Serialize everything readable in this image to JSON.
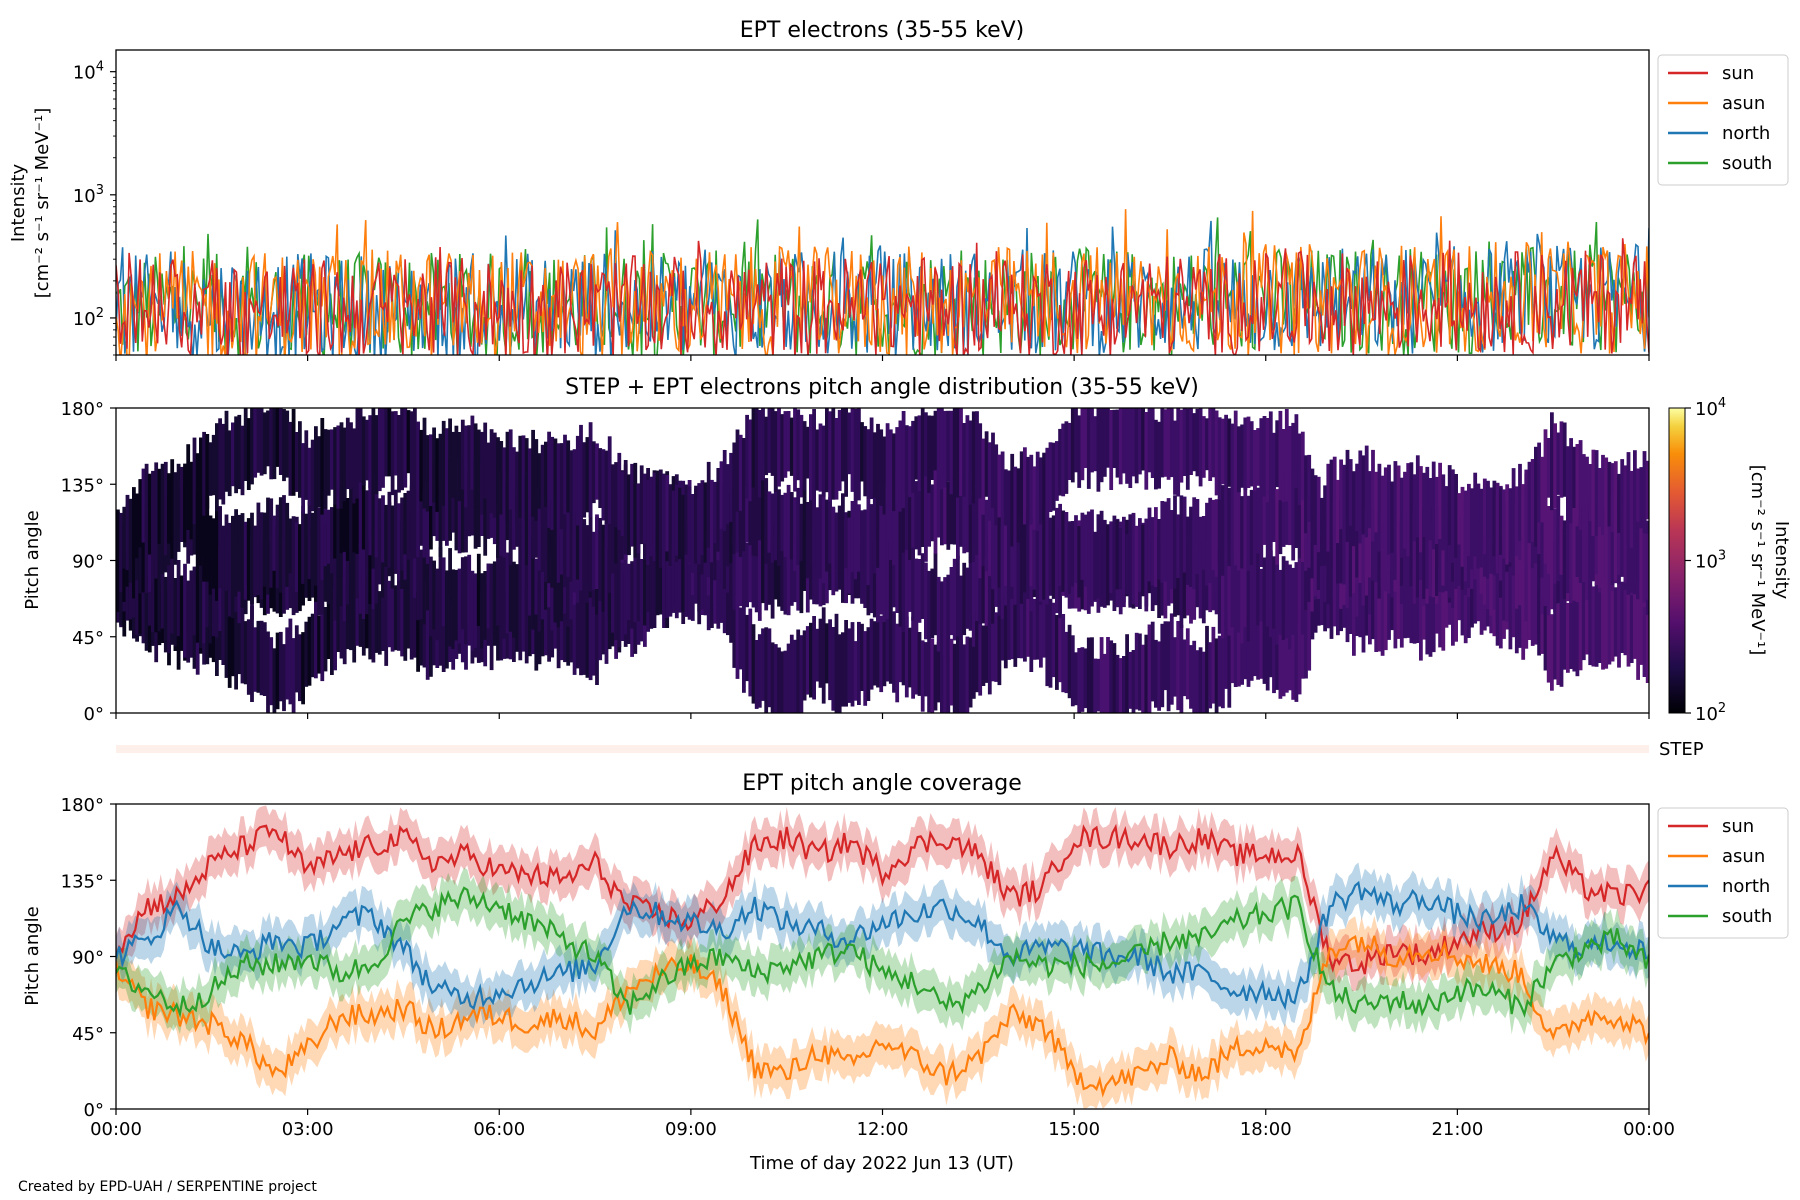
{
  "figure": {
    "credit": "Created by EPD-UAH / SERPENTINE project",
    "xlabel": "Time of day 2022 Jun 13 (UT)",
    "xticks": [
      "00:00",
      "03:00",
      "06:00",
      "09:00",
      "12:00",
      "15:00",
      "18:00",
      "21:00",
      "00:00"
    ],
    "colors": {
      "sun": "#d62728",
      "asun": "#ff7f0e",
      "north": "#1f77b4",
      "south": "#2ca02c"
    }
  },
  "chart_data": [
    {
      "type": "line",
      "title": "EPT electrons (35-55 keV)",
      "ylabel_line1": "Intensity",
      "ylabel_line2": "[cm⁻² s⁻¹ sr⁻¹ MeV⁻¹]",
      "yscale": "log",
      "ylim": [
        50,
        15000
      ],
      "yticks": [
        {
          "base": "10",
          "exp": "2"
        },
        {
          "base": "10",
          "exp": "3"
        },
        {
          "base": "10",
          "exp": "4"
        }
      ],
      "x_range_hours": [
        0,
        24
      ],
      "legend": {
        "placement": "outside-right",
        "entries": [
          "sun",
          "asun",
          "north",
          "south"
        ]
      },
      "series": [
        {
          "name": "sun",
          "typical_range": [
            60,
            300
          ],
          "peak": 400
        },
        {
          "name": "asun",
          "typical_range": [
            60,
            350
          ],
          "peak": 700
        },
        {
          "name": "north",
          "typical_range": [
            60,
            330
          ],
          "peak": 580
        },
        {
          "name": "south",
          "typical_range": [
            60,
            330
          ],
          "peak": 600
        }
      ]
    },
    {
      "type": "heatmap",
      "title": "STEP + EPT electrons pitch angle distribution (35-55 keV)",
      "ylabel": "Pitch angle",
      "ylim": [
        0,
        180
      ],
      "yticks": [
        "0°",
        "45°",
        "90°",
        "135°",
        "180°"
      ],
      "colorbar": {
        "label_line1": "Intensity",
        "label_line2": "[cm⁻² s⁻¹ sr⁻¹ MeV⁻¹]",
        "scale": "log",
        "range": [
          100,
          10000
        ],
        "ticks": [
          {
            "base": "10",
            "exp": "2"
          },
          {
            "base": "10",
            "exp": "3"
          },
          {
            "base": "10",
            "exp": "4"
          }
        ],
        "colormap": "inferno"
      },
      "step_label": "STEP"
    },
    {
      "type": "line",
      "title": "EPT pitch angle coverage",
      "ylabel": "Pitch angle",
      "ylim": [
        0,
        180
      ],
      "yticks": [
        "0°",
        "45°",
        "90°",
        "135°",
        "180°"
      ],
      "legend": {
        "placement": "outside-right",
        "entries": [
          "sun",
          "asun",
          "north",
          "south"
        ]
      },
      "x_hours": [
        0,
        0.5,
        1,
        1.5,
        2,
        2.5,
        3,
        3.5,
        4,
        4.5,
        5,
        5.5,
        6,
        6.5,
        7,
        7.5,
        8,
        8.5,
        9,
        9.5,
        10,
        10.5,
        11,
        11.5,
        12,
        12.5,
        13,
        13.5,
        14,
        14.5,
        15,
        15.5,
        16,
        16.5,
        17,
        17.5,
        18,
        18.5,
        19,
        19.5,
        20,
        20.5,
        21,
        21.5,
        22,
        22.5,
        23,
        23.5,
        24
      ],
      "series": [
        {
          "name": "sun",
          "values": [
            95,
            120,
            125,
            145,
            155,
            165,
            140,
            150,
            155,
            160,
            145,
            150,
            140,
            138,
            135,
            145,
            120,
            115,
            110,
            125,
            155,
            160,
            150,
            158,
            140,
            155,
            160,
            150,
            125,
            130,
            160,
            160,
            160,
            155,
            160,
            150,
            150,
            150,
            90,
            85,
            95,
            90,
            100,
            105,
            110,
            150,
            130,
            125,
            130
          ]
        },
        {
          "name": "asun",
          "values": [
            80,
            60,
            55,
            50,
            40,
            20,
            35,
            55,
            55,
            60,
            45,
            55,
            55,
            50,
            55,
            45,
            70,
            80,
            85,
            70,
            25,
            20,
            35,
            25,
            40,
            30,
            20,
            30,
            55,
            50,
            20,
            15,
            20,
            30,
            20,
            35,
            40,
            30,
            95,
            100,
            90,
            95,
            90,
            85,
            80,
            40,
            55,
            55,
            45
          ]
        },
        {
          "name": "north",
          "values": [
            90,
            100,
            120,
            95,
            90,
            100,
            95,
            110,
            115,
            95,
            70,
            65,
            70,
            75,
            80,
            85,
            120,
            115,
            110,
            105,
            120,
            110,
            105,
            100,
            110,
            115,
            120,
            110,
            90,
            95,
            95,
            90,
            90,
            80,
            80,
            70,
            70,
            65,
            120,
            130,
            120,
            125,
            115,
            110,
            120,
            100,
            95,
            100,
            90
          ]
        },
        {
          "name": "south",
          "values": [
            80,
            70,
            60,
            70,
            85,
            85,
            90,
            80,
            85,
            110,
            120,
            125,
            120,
            110,
            100,
            90,
            60,
            75,
            85,
            90,
            80,
            85,
            90,
            95,
            80,
            75,
            60,
            70,
            90,
            85,
            85,
            85,
            90,
            100,
            100,
            110,
            115,
            120,
            70,
            60,
            65,
            60,
            70,
            70,
            60,
            85,
            95,
            100,
            85
          ]
        }
      ]
    }
  ]
}
